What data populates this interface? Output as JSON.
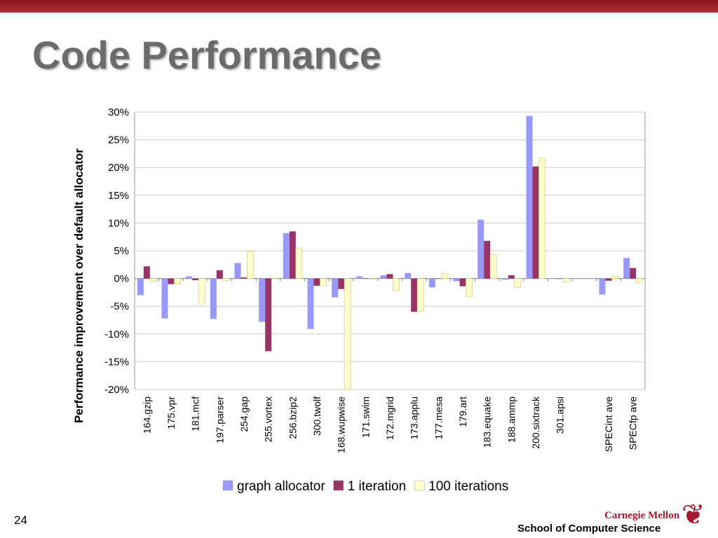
{
  "slide": {
    "title": "Code Performance",
    "page_number": "24",
    "footer": "School of Computer Science",
    "logo_text": "Carnegie Mellon"
  },
  "chart_data": {
    "type": "bar",
    "title": "",
    "ylabel": "Performance improvement over default allocator",
    "xlabel": "",
    "ylim": [
      -20,
      30
    ],
    "yticks": [
      30,
      25,
      20,
      15,
      10,
      5,
      0,
      -5,
      -10,
      -15,
      -20
    ],
    "ytick_labels": [
      "30%",
      "25%",
      "20%",
      "15%",
      "10%",
      "5%",
      "0%",
      "-5%",
      "-10%",
      "-15%",
      "-20%"
    ],
    "grid": true,
    "legend_position": "bottom",
    "categories": [
      "164.gzip",
      "175.vpr",
      "181.mcf",
      "197.parser",
      "254.gap",
      "255.vortex",
      "256.bzip2",
      "300.twolf",
      "168.wupwise",
      "171.swim",
      "172.mgrid",
      "173.applu",
      "177.mesa",
      "179.art",
      "183.equake",
      "188.ammp",
      "200.sixtrack",
      "301.apsi",
      "",
      "SPECint ave",
      "SPECfp ave"
    ],
    "series": [
      {
        "name": "graph allocator",
        "color": "#9999ff",
        "values": [
          -3.0,
          -7.2,
          0.4,
          -7.3,
          2.8,
          -7.8,
          8.2,
          -9.1,
          -3.4,
          0.4,
          0.6,
          1.0,
          -1.6,
          -0.5,
          10.6,
          -0.2,
          29.3,
          0,
          null,
          -2.9,
          3.7
        ]
      },
      {
        "name": "1 iteration",
        "color": "#993366",
        "values": [
          2.2,
          -1.0,
          -0.3,
          1.5,
          0.2,
          -13.1,
          8.5,
          -1.3,
          -1.9,
          0,
          0.8,
          -6.0,
          0,
          -1.4,
          6.8,
          0.6,
          20.2,
          0,
          null,
          -0.4,
          1.9
        ]
      },
      {
        "name": "100 iterations",
        "color": "#ffffcc",
        "values": [
          -0.5,
          -1.0,
          -4.6,
          -0.4,
          4.9,
          0.1,
          5.5,
          -1.3,
          -20,
          -0.1,
          -2.2,
          -5.9,
          0.9,
          -3.3,
          4.3,
          -1.6,
          21.7,
          -0.6,
          null,
          0.4,
          -0.7
        ]
      }
    ]
  }
}
